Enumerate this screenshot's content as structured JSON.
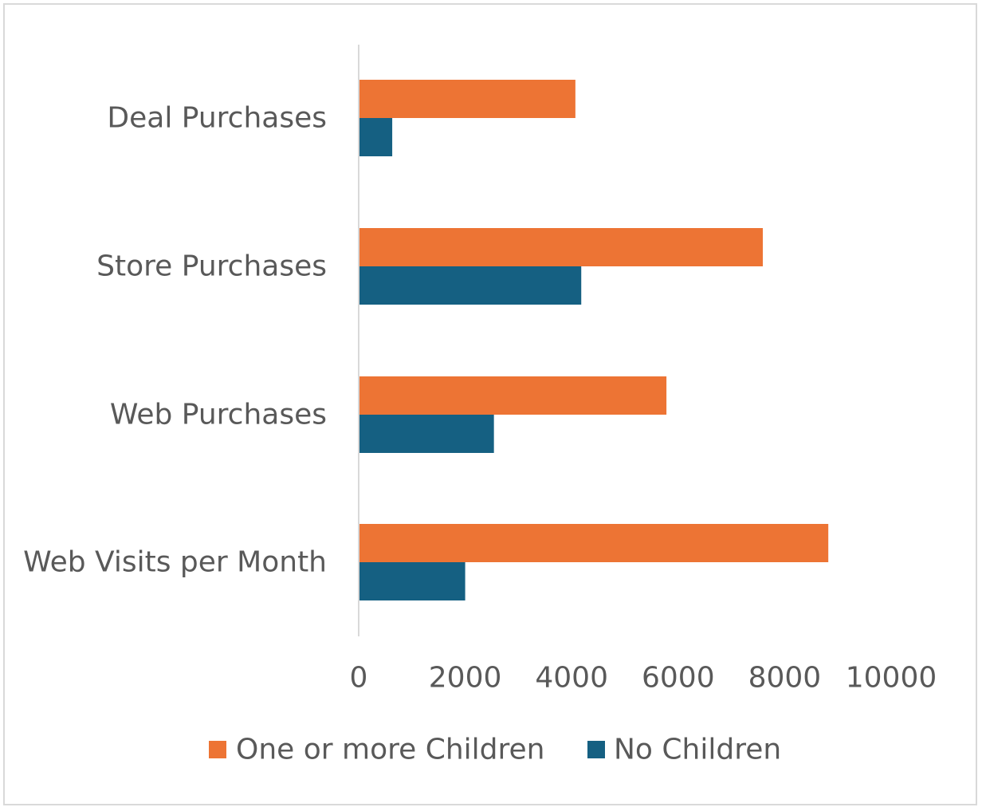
{
  "chart_data": {
    "type": "bar",
    "orientation": "horizontal",
    "categories": [
      "Deal Purchases",
      "Store Purchases",
      "Web Purchases",
      "Web Visits per Month"
    ],
    "series": [
      {
        "name": "One or more Children",
        "color": "#ed7434",
        "values": [
          4070,
          7590,
          5780,
          8820
        ]
      },
      {
        "name": "No Children",
        "color": "#156082",
        "values": [
          630,
          4180,
          2540,
          2000
        ]
      }
    ],
    "xlim": [
      0,
      10000
    ],
    "xticks": [
      "0",
      "2000",
      "4000",
      "6000",
      "8000",
      "10000"
    ],
    "title": "",
    "xlabel": "",
    "ylabel": "",
    "grid": false,
    "legend_position": "bottom",
    "axis_color": "#d9d9d9",
    "text_color": "#595959"
  }
}
